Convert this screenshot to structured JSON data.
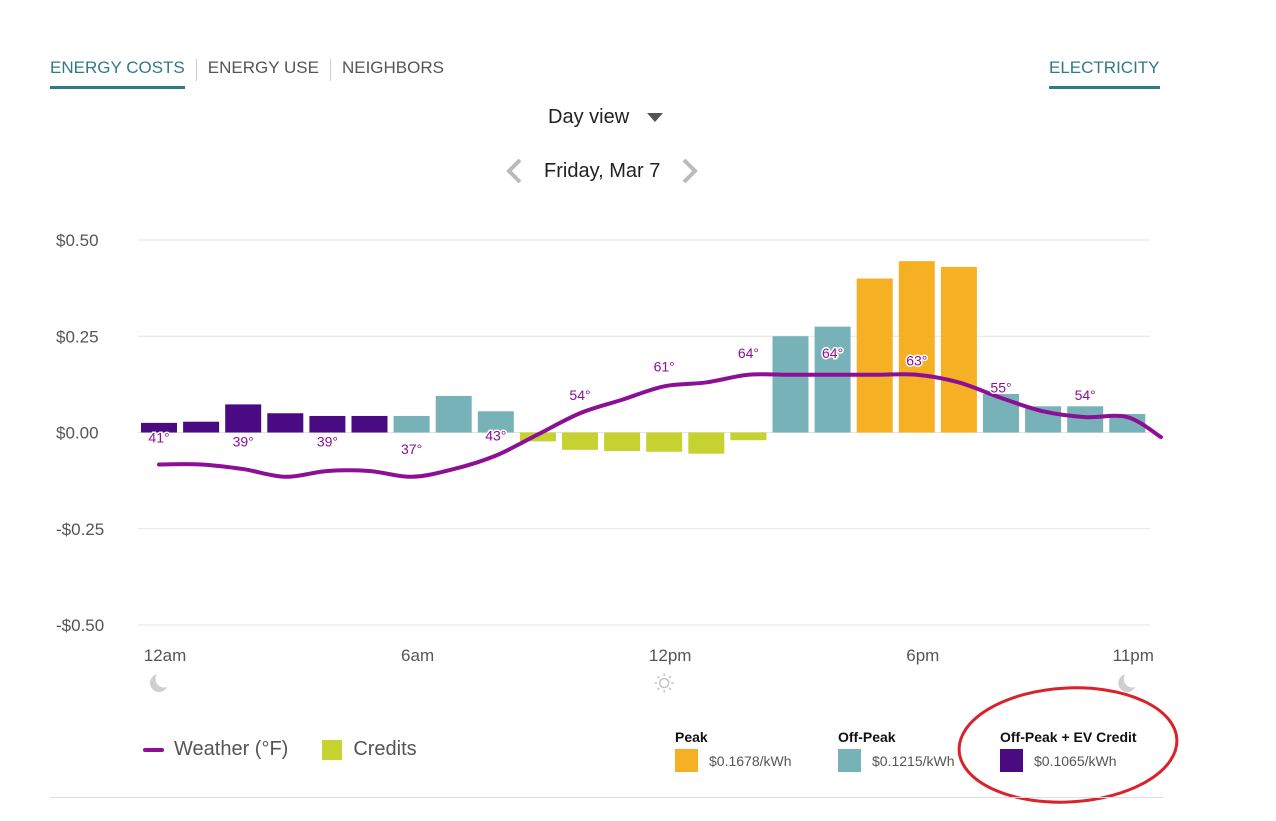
{
  "tabs": [
    {
      "label": "ENERGY COSTS",
      "active": true
    },
    {
      "label": "ENERGY USE",
      "active": false
    },
    {
      "label": "NEIGHBORS",
      "active": false
    }
  ],
  "fuel_tab": "ELECTRICITY",
  "view_select": {
    "label": "Day view"
  },
  "date_nav": {
    "date": "Friday, Mar 7"
  },
  "colors": {
    "peak": "#f6b023",
    "off_peak": "#77b2b8",
    "off_peak_ev": "#4a0a82",
    "credits": "#c6d22f",
    "weather": "#8c0f96",
    "annotation_ellipse": "#d9222a"
  },
  "chart_data": {
    "type": "bar",
    "title": "",
    "xlabel": "",
    "ylabel": "",
    "ylim": [
      -0.5,
      0.5
    ],
    "y_ticks": [
      "$0.50",
      "$0.25",
      "$0.00",
      "-$0.25",
      "-$0.50"
    ],
    "x_tick_labels": [
      {
        "hour": 0,
        "label": "12am",
        "icon": "moon-icon"
      },
      {
        "hour": 6,
        "label": "6am",
        "icon": ""
      },
      {
        "hour": 12,
        "label": "12pm",
        "icon": "sun-icon"
      },
      {
        "hour": 18,
        "label": "6pm",
        "icon": ""
      },
      {
        "hour": 23,
        "label": "11pm",
        "icon": "moon-icon"
      }
    ],
    "grid": true,
    "bars": [
      {
        "hour": 0,
        "value": 0.025,
        "category": "off_peak_ev"
      },
      {
        "hour": 1,
        "value": 0.028,
        "category": "off_peak_ev"
      },
      {
        "hour": 2,
        "value": 0.073,
        "category": "off_peak_ev"
      },
      {
        "hour": 3,
        "value": 0.05,
        "category": "off_peak_ev"
      },
      {
        "hour": 4,
        "value": 0.043,
        "category": "off_peak_ev"
      },
      {
        "hour": 5,
        "value": 0.043,
        "category": "off_peak_ev"
      },
      {
        "hour": 6,
        "value": 0.043,
        "category": "off_peak"
      },
      {
        "hour": 7,
        "value": 0.095,
        "category": "off_peak"
      },
      {
        "hour": 8,
        "value": 0.055,
        "category": "off_peak"
      },
      {
        "hour": 9,
        "value": -0.023,
        "category": "credits"
      },
      {
        "hour": 10,
        "value": -0.045,
        "category": "credits"
      },
      {
        "hour": 11,
        "value": -0.048,
        "category": "credits"
      },
      {
        "hour": 12,
        "value": -0.05,
        "category": "credits"
      },
      {
        "hour": 13,
        "value": -0.055,
        "category": "credits"
      },
      {
        "hour": 14,
        "value": -0.02,
        "category": "credits"
      },
      {
        "hour": 15,
        "value": 0.25,
        "category": "off_peak"
      },
      {
        "hour": 16,
        "value": 0.275,
        "category": "off_peak"
      },
      {
        "hour": 17,
        "value": 0.4,
        "category": "peak"
      },
      {
        "hour": 18,
        "value": 0.445,
        "category": "peak"
      },
      {
        "hour": 19,
        "value": 0.43,
        "category": "peak"
      },
      {
        "hour": 20,
        "value": 0.1,
        "category": "off_peak"
      },
      {
        "hour": 21,
        "value": 0.068,
        "category": "off_peak"
      },
      {
        "hour": 22,
        "value": 0.068,
        "category": "off_peak"
      },
      {
        "hour": 23,
        "value": 0.048,
        "category": "off_peak"
      }
    ],
    "weather_series": {
      "name": "Weather (°F)",
      "points": [
        {
          "hour": 0,
          "value": -0.083
        },
        {
          "hour": 1,
          "value": -0.083
        },
        {
          "hour": 2,
          "value": -0.095
        },
        {
          "hour": 3,
          "value": -0.115
        },
        {
          "hour": 4,
          "value": -0.1
        },
        {
          "hour": 5,
          "value": -0.1
        },
        {
          "hour": 6,
          "value": -0.115
        },
        {
          "hour": 7,
          "value": -0.095
        },
        {
          "hour": 8,
          "value": -0.06
        },
        {
          "hour": 9,
          "value": -0.005
        },
        {
          "hour": 10,
          "value": 0.05
        },
        {
          "hour": 11,
          "value": 0.085
        },
        {
          "hour": 12,
          "value": 0.12
        },
        {
          "hour": 13,
          "value": 0.13
        },
        {
          "hour": 14,
          "value": 0.15
        },
        {
          "hour": 15,
          "value": 0.15
        },
        {
          "hour": 16,
          "value": 0.15
        },
        {
          "hour": 17,
          "value": 0.15
        },
        {
          "hour": 18,
          "value": 0.15
        },
        {
          "hour": 19,
          "value": 0.13
        },
        {
          "hour": 20,
          "value": 0.09
        },
        {
          "hour": 21,
          "value": 0.055
        },
        {
          "hour": 22,
          "value": 0.04
        },
        {
          "hour": 23,
          "value": 0.04
        },
        {
          "hour": 23.8,
          "value": -0.012
        }
      ]
    },
    "temperature_labels": [
      {
        "hour": 0,
        "value": 0.0,
        "label": "41°"
      },
      {
        "hour": 2,
        "value": -0.01,
        "label": "39°"
      },
      {
        "hour": 4,
        "value": -0.01,
        "label": "39°"
      },
      {
        "hour": 6,
        "value": -0.03,
        "label": "37°"
      },
      {
        "hour": 8,
        "value": 0.005,
        "label": "43°"
      },
      {
        "hour": 10,
        "value": 0.11,
        "label": "54°"
      },
      {
        "hour": 12,
        "value": 0.185,
        "label": "61°"
      },
      {
        "hour": 14,
        "value": 0.22,
        "label": "64°"
      },
      {
        "hour": 16,
        "value": 0.22,
        "label": "64°"
      },
      {
        "hour": 18,
        "value": 0.2,
        "label": "63°"
      },
      {
        "hour": 20,
        "value": 0.13,
        "label": "55°"
      },
      {
        "hour": 22,
        "value": 0.11,
        "label": "54°"
      }
    ]
  },
  "legend": {
    "weather_label": "Weather (°F)",
    "credits_label": "Credits"
  },
  "rates": [
    {
      "key": "peak",
      "title": "Peak",
      "value": "$0.1678/kWh"
    },
    {
      "key": "off_peak",
      "title": "Off-Peak",
      "value": "$0.1215/kWh"
    },
    {
      "key": "off_peak_ev",
      "title": "Off-Peak + EV Credit",
      "value": "$0.1065/kWh"
    }
  ]
}
